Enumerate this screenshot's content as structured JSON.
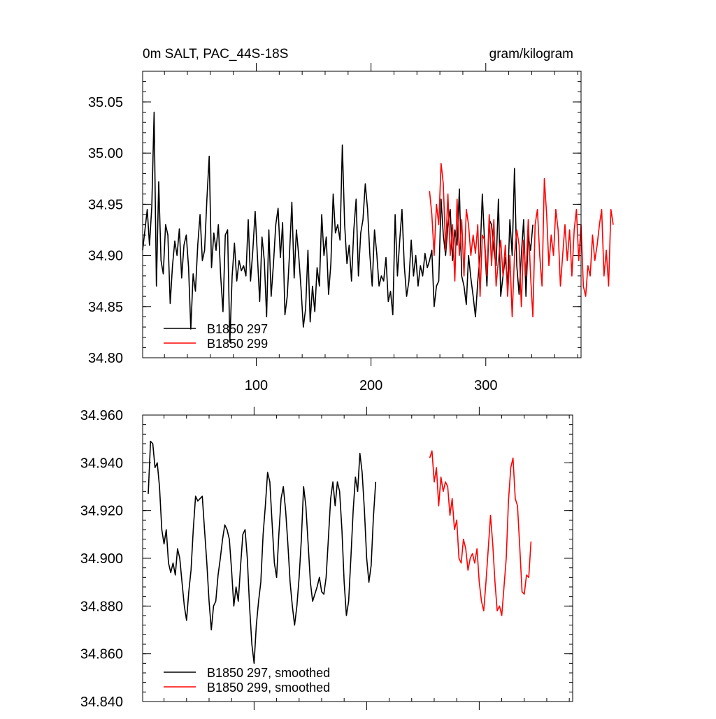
{
  "chart_data": [
    {
      "type": "line",
      "title": "0m SALT, PAC_44S-18S",
      "units": "gram/kilogram",
      "xlabel": "",
      "ylabel": "",
      "xlim": [
        1,
        383
      ],
      "ylim": [
        34.8,
        35.08
      ],
      "xticks": [
        100,
        200,
        300
      ],
      "xtick_labels": [
        "100",
        "200",
        "300"
      ],
      "yticks": [
        34.8,
        34.85,
        34.9,
        34.95,
        35.0,
        35.05
      ],
      "ytick_labels": [
        "34.80",
        "34.85",
        "34.90",
        "34.95",
        "35.00",
        "35.05"
      ],
      "grid": false,
      "legend_position": "bottom-left",
      "series": [
        {
          "name": "B1850 297",
          "color": "#000000",
          "x_start": 1,
          "x_step": 2,
          "values": [
            34.905,
            34.925,
            34.945,
            34.91,
            34.948,
            35.04,
            34.87,
            34.972,
            34.895,
            34.882,
            34.93,
            34.92,
            34.853,
            34.89,
            34.914,
            34.9,
            34.926,
            34.878,
            34.91,
            34.92,
            34.888,
            34.828,
            34.882,
            34.865,
            34.91,
            34.94,
            34.895,
            34.905,
            34.955,
            34.997,
            34.888,
            34.922,
            34.905,
            34.93,
            34.88,
            34.845,
            34.92,
            34.925,
            34.815,
            34.88,
            34.912,
            34.875,
            34.895,
            34.885,
            34.89,
            34.88,
            34.935,
            34.875,
            34.905,
            34.943,
            34.9,
            34.855,
            34.918,
            34.895,
            34.84,
            34.925,
            34.86,
            34.892,
            34.93,
            34.946,
            34.898,
            34.932,
            34.842,
            34.86,
            34.902,
            34.952,
            34.878,
            34.925,
            34.9,
            34.868,
            34.83,
            34.848,
            34.905,
            34.835,
            34.87,
            34.845,
            34.888,
            34.87,
            34.94,
            34.9,
            34.918,
            34.862,
            34.892,
            34.96,
            34.922,
            34.93,
            34.915,
            35.008,
            34.93,
            34.892,
            34.91,
            34.875,
            34.925,
            34.955,
            34.88,
            34.922,
            34.935,
            34.97,
            34.945,
            34.9,
            34.87,
            34.925,
            34.902,
            34.87,
            34.88,
            34.875,
            34.898,
            34.855,
            34.865,
            34.842,
            34.94,
            34.88,
            34.915,
            34.945,
            34.89,
            34.86,
            34.875,
            34.915,
            34.88,
            34.9,
            34.87,
            34.89,
            34.88,
            34.902,
            34.888,
            34.895,
            34.905,
            34.85,
            34.87,
            34.875,
            34.955,
            34.92,
            34.9,
            34.93,
            34.945,
            34.895,
            34.925,
            34.91,
            34.965,
            34.88,
            34.87,
            34.852,
            34.9,
            34.878,
            34.86,
            34.84,
            34.875,
            34.9,
            34.96,
            34.912,
            34.87,
            34.935,
            34.93,
            34.905,
            34.89,
            34.955,
            34.86,
            34.88,
            34.898,
            34.87,
            34.935,
            34.9,
            34.985,
            34.89,
            34.862,
            34.9,
            34.935,
            34.86,
            34.92,
            34.905,
            34.93
          ]
        },
        {
          "name": "B1850 299",
          "color": "#ff0000",
          "x_start": 251,
          "x_step": 2,
          "values": [
            34.963,
            34.94,
            34.9,
            34.95,
            34.93,
            34.99,
            34.97,
            34.905,
            34.96,
            34.9,
            34.93,
            34.875,
            34.955,
            34.9,
            34.935,
            34.88,
            34.945,
            34.93,
            34.9,
            34.92,
            34.902,
            34.93,
            34.86,
            34.92,
            34.915,
            34.88,
            34.94,
            34.89,
            34.935,
            34.87,
            34.895,
            34.915,
            34.88,
            34.91,
            34.86,
            34.9,
            34.84,
            34.9,
            34.925,
            34.91,
            34.85,
            34.915,
            34.88,
            34.935,
            34.88,
            34.84,
            34.93,
            34.945,
            34.9,
            34.87,
            34.975,
            34.94,
            34.89,
            34.92,
            34.9,
            34.945,
            34.925,
            34.87,
            34.9,
            34.93,
            34.895,
            34.925,
            34.88,
            34.925,
            34.945,
            34.895,
            34.93,
            34.87,
            34.86,
            34.89,
            34.88,
            34.92,
            34.895,
            34.91,
            34.93,
            34.945,
            34.88,
            34.905,
            34.87,
            34.945,
            34.93
          ]
        }
      ]
    },
    {
      "type": "line",
      "title": "",
      "xlabel": "",
      "ylabel": "",
      "xlim": [
        1,
        383
      ],
      "ylim": [
        34.84,
        34.96
      ],
      "xticks": [
        100,
        200,
        300
      ],
      "yticks": [
        34.84,
        34.86,
        34.88,
        34.9,
        34.92,
        34.94,
        34.96
      ],
      "ytick_labels": [
        "34.840",
        "34.860",
        "34.880",
        "34.900",
        "34.920",
        "34.940",
        "34.960"
      ],
      "grid": false,
      "legend_position": "bottom-left",
      "series": [
        {
          "name": "B1850 297, smoothed",
          "color": "#000000",
          "x_start": 6,
          "x_step": 2,
          "values": [
            34.927,
            34.949,
            34.948,
            34.938,
            34.94,
            34.93,
            34.912,
            34.906,
            34.912,
            34.898,
            34.894,
            34.898,
            34.893,
            34.904,
            34.9,
            34.89,
            34.88,
            34.874,
            34.886,
            34.895,
            34.912,
            34.926,
            34.924,
            34.925,
            34.926,
            34.912,
            34.898,
            34.882,
            34.87,
            34.88,
            34.882,
            34.893,
            34.9,
            34.908,
            34.914,
            34.912,
            34.908,
            34.895,
            34.88,
            34.888,
            34.882,
            34.897,
            34.91,
            34.912,
            34.9,
            34.88,
            34.864,
            34.856,
            34.872,
            34.882,
            34.89,
            34.91,
            34.922,
            34.936,
            34.932,
            34.915,
            34.898,
            34.892,
            34.91,
            34.925,
            34.93,
            34.92,
            34.906,
            34.89,
            34.88,
            34.872,
            34.88,
            34.892,
            34.908,
            34.93,
            34.922,
            34.906,
            34.89,
            34.882,
            34.885,
            34.888,
            34.892,
            34.886,
            34.885,
            34.892,
            34.908,
            34.925,
            34.932,
            34.922,
            34.932,
            34.928,
            34.912,
            34.89,
            34.876,
            34.882,
            34.9,
            34.92,
            34.934,
            34.928,
            34.944,
            34.936,
            34.92,
            34.9,
            34.89,
            34.897,
            34.917,
            34.932
          ]
        },
        {
          "name": "B1850 299, smoothed",
          "color": "#ff0000",
          "x_start": 256,
          "x_step": 2,
          "values": [
            34.942,
            34.945,
            34.932,
            34.938,
            34.922,
            34.934,
            34.928,
            34.932,
            34.93,
            34.918,
            34.925,
            34.912,
            34.916,
            34.9,
            34.898,
            34.908,
            34.904,
            34.895,
            34.9,
            34.902,
            34.898,
            34.904,
            34.89,
            34.882,
            34.878,
            34.89,
            34.904,
            34.918,
            34.906,
            34.89,
            34.878,
            34.88,
            34.876,
            34.888,
            34.9,
            34.924,
            34.938,
            34.942,
            34.925,
            34.922,
            34.905,
            34.886,
            34.885,
            34.893,
            34.892,
            34.907
          ]
        }
      ]
    }
  ]
}
